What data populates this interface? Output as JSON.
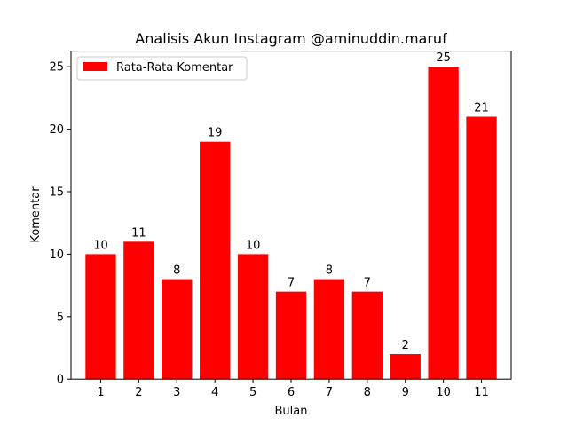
{
  "chart_data": {
    "type": "bar",
    "title": "Analisis Akun Instagram @aminuddin.maruf",
    "xlabel": "Bulan",
    "ylabel": "Komentar",
    "categories": [
      "1",
      "2",
      "3",
      "4",
      "5",
      "6",
      "7",
      "8",
      "9",
      "10",
      "11"
    ],
    "series": [
      {
        "name": "Rata-Rata Komentar",
        "values": [
          10,
          11,
          8,
          19,
          10,
          7,
          8,
          7,
          2,
          25,
          21
        ],
        "color": "#ff0000"
      }
    ],
    "data_labels": [
      "10",
      "11",
      "8",
      "19",
      "10",
      "7",
      "8",
      "7",
      "2",
      "25",
      "21"
    ],
    "y_ticks": [
      "0",
      "5",
      "10",
      "15",
      "20",
      "25"
    ],
    "ylim": [
      0,
      26.25
    ],
    "grid": false,
    "legend_position": "upper-left"
  }
}
